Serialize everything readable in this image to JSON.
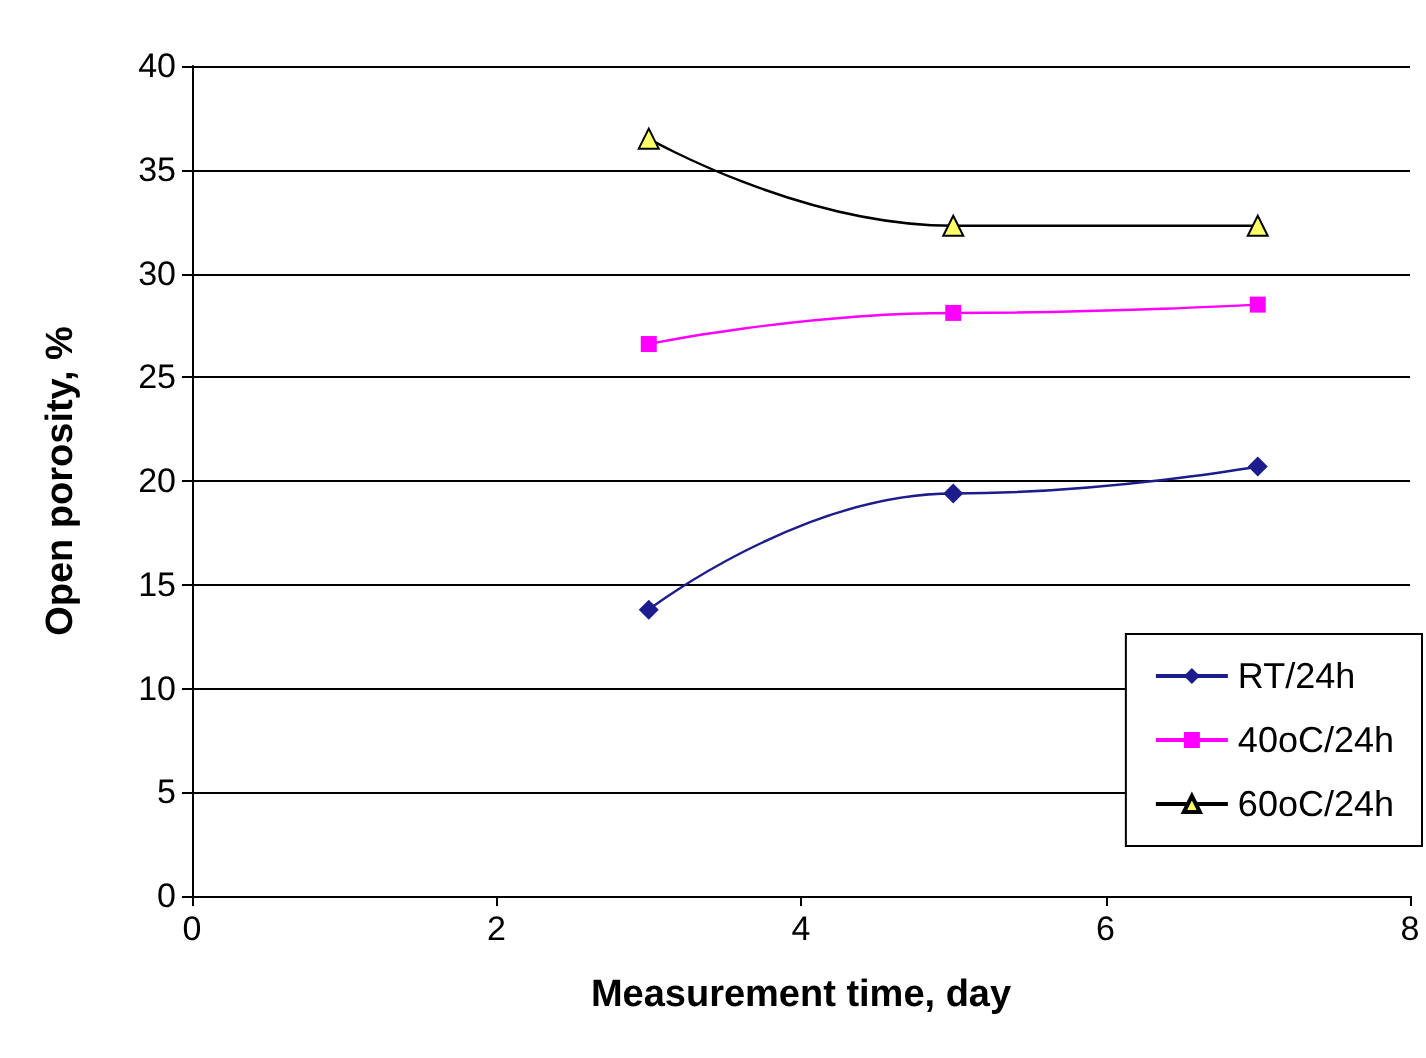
{
  "chart_data": {
    "type": "line",
    "xlabel": "Measurement time, day",
    "ylabel": "Open porosity, %",
    "x": [
      3,
      5,
      7
    ],
    "series": [
      {
        "name": "RT/24h",
        "color": "#1c1c8c",
        "marker": "diamond",
        "values": [
          13.8,
          19.4,
          20.7
        ]
      },
      {
        "name": "40oC/24h",
        "color": "#ff00ff",
        "marker": "square",
        "values": [
          26.6,
          28.1,
          28.5
        ]
      },
      {
        "name": "60oC/24h",
        "color": "#000000",
        "marker": "triangle",
        "values": [
          36.5,
          32.3,
          32.3
        ]
      }
    ],
    "xlim": [
      0,
      8
    ],
    "xticks": [
      0,
      2,
      4,
      6,
      8
    ],
    "ylim": [
      0,
      40
    ],
    "yticks": [
      0,
      5,
      10,
      15,
      20,
      25,
      30,
      35,
      40
    ],
    "grid": "y",
    "legend": "bottom right"
  }
}
